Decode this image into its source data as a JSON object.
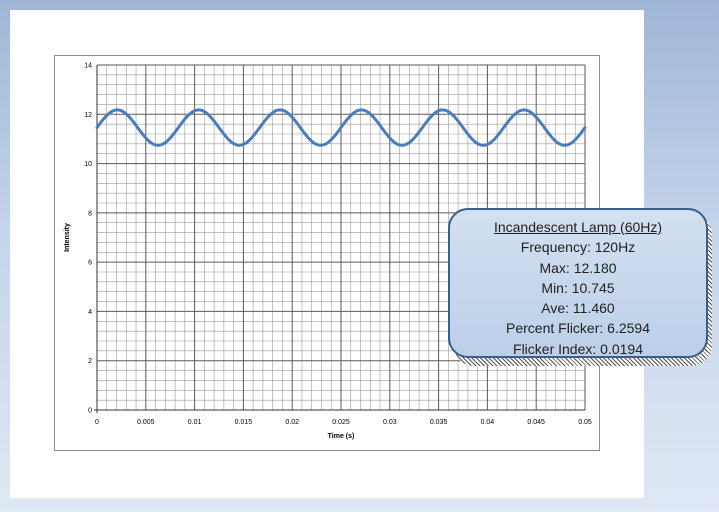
{
  "chart_data": {
    "type": "line",
    "xlabel": "Time (s)",
    "ylabel": "Intensity",
    "xlim": [
      0,
      0.05
    ],
    "ylim": [
      0,
      14
    ],
    "x_ticks": [
      "0",
      "0.005",
      "0.01",
      "0.015",
      "0.02",
      "0.025",
      "0.03",
      "0.035",
      "0.04",
      "0.045",
      "0.05"
    ],
    "y_ticks": [
      "0",
      "2",
      "4",
      "6",
      "8",
      "10",
      "12",
      "14"
    ],
    "grid": true,
    "series": [
      {
        "frequency_hz": 120,
        "mean": 11.46,
        "amplitude": 0.7175,
        "phase_deg": 0,
        "color": "#4a7ebb"
      }
    ]
  },
  "callout": {
    "title": "Incandescent Lamp (60Hz)",
    "lines": [
      "Frequency: 120Hz",
      "Max: 12.180",
      "Min: 10.745",
      "Ave: 11.460",
      "Percent Flicker: 6.2594",
      "Flicker Index: 0.0194"
    ]
  }
}
